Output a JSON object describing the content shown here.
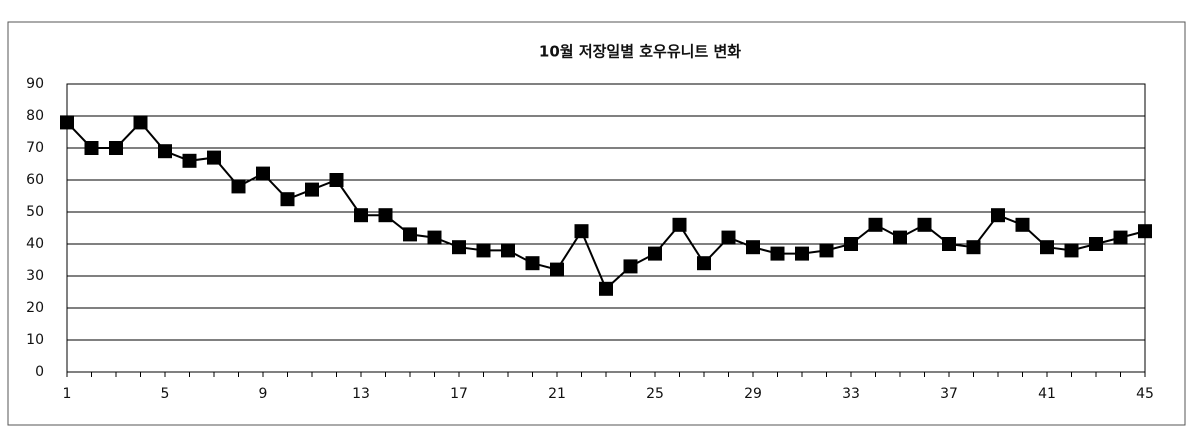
{
  "chart_data": {
    "type": "line",
    "title": "10월 저장일별 호우유니트 변화",
    "x": [
      1,
      2,
      3,
      4,
      5,
      6,
      7,
      8,
      9,
      10,
      11,
      12,
      13,
      14,
      15,
      16,
      17,
      18,
      19,
      20,
      21,
      22,
      23,
      24,
      25,
      26,
      27,
      28,
      29,
      30,
      31,
      32,
      33,
      34,
      35,
      36,
      37,
      38,
      39,
      40,
      41,
      42,
      43,
      44,
      45
    ],
    "series": [
      {
        "color": "#000000",
        "values": [
          78,
          70,
          70,
          78,
          69,
          66,
          67,
          58,
          62,
          54,
          57,
          60,
          49,
          49,
          43,
          42,
          39,
          38,
          38,
          34,
          32,
          44,
          26,
          33,
          37,
          46,
          34,
          42,
          39,
          37,
          37,
          38,
          40,
          46,
          42,
          46,
          40,
          39,
          49,
          46,
          39,
          38,
          40,
          42,
          44
        ]
      }
    ],
    "xlim": [
      1,
      45
    ],
    "xticks": [
      1,
      5,
      9,
      13,
      17,
      21,
      25,
      29,
      33,
      37,
      41,
      45
    ],
    "ylim": [
      0,
      90
    ],
    "yticks": [
      0,
      10,
      20,
      30,
      40,
      50,
      60,
      70,
      80,
      90
    ],
    "grid": true
  }
}
